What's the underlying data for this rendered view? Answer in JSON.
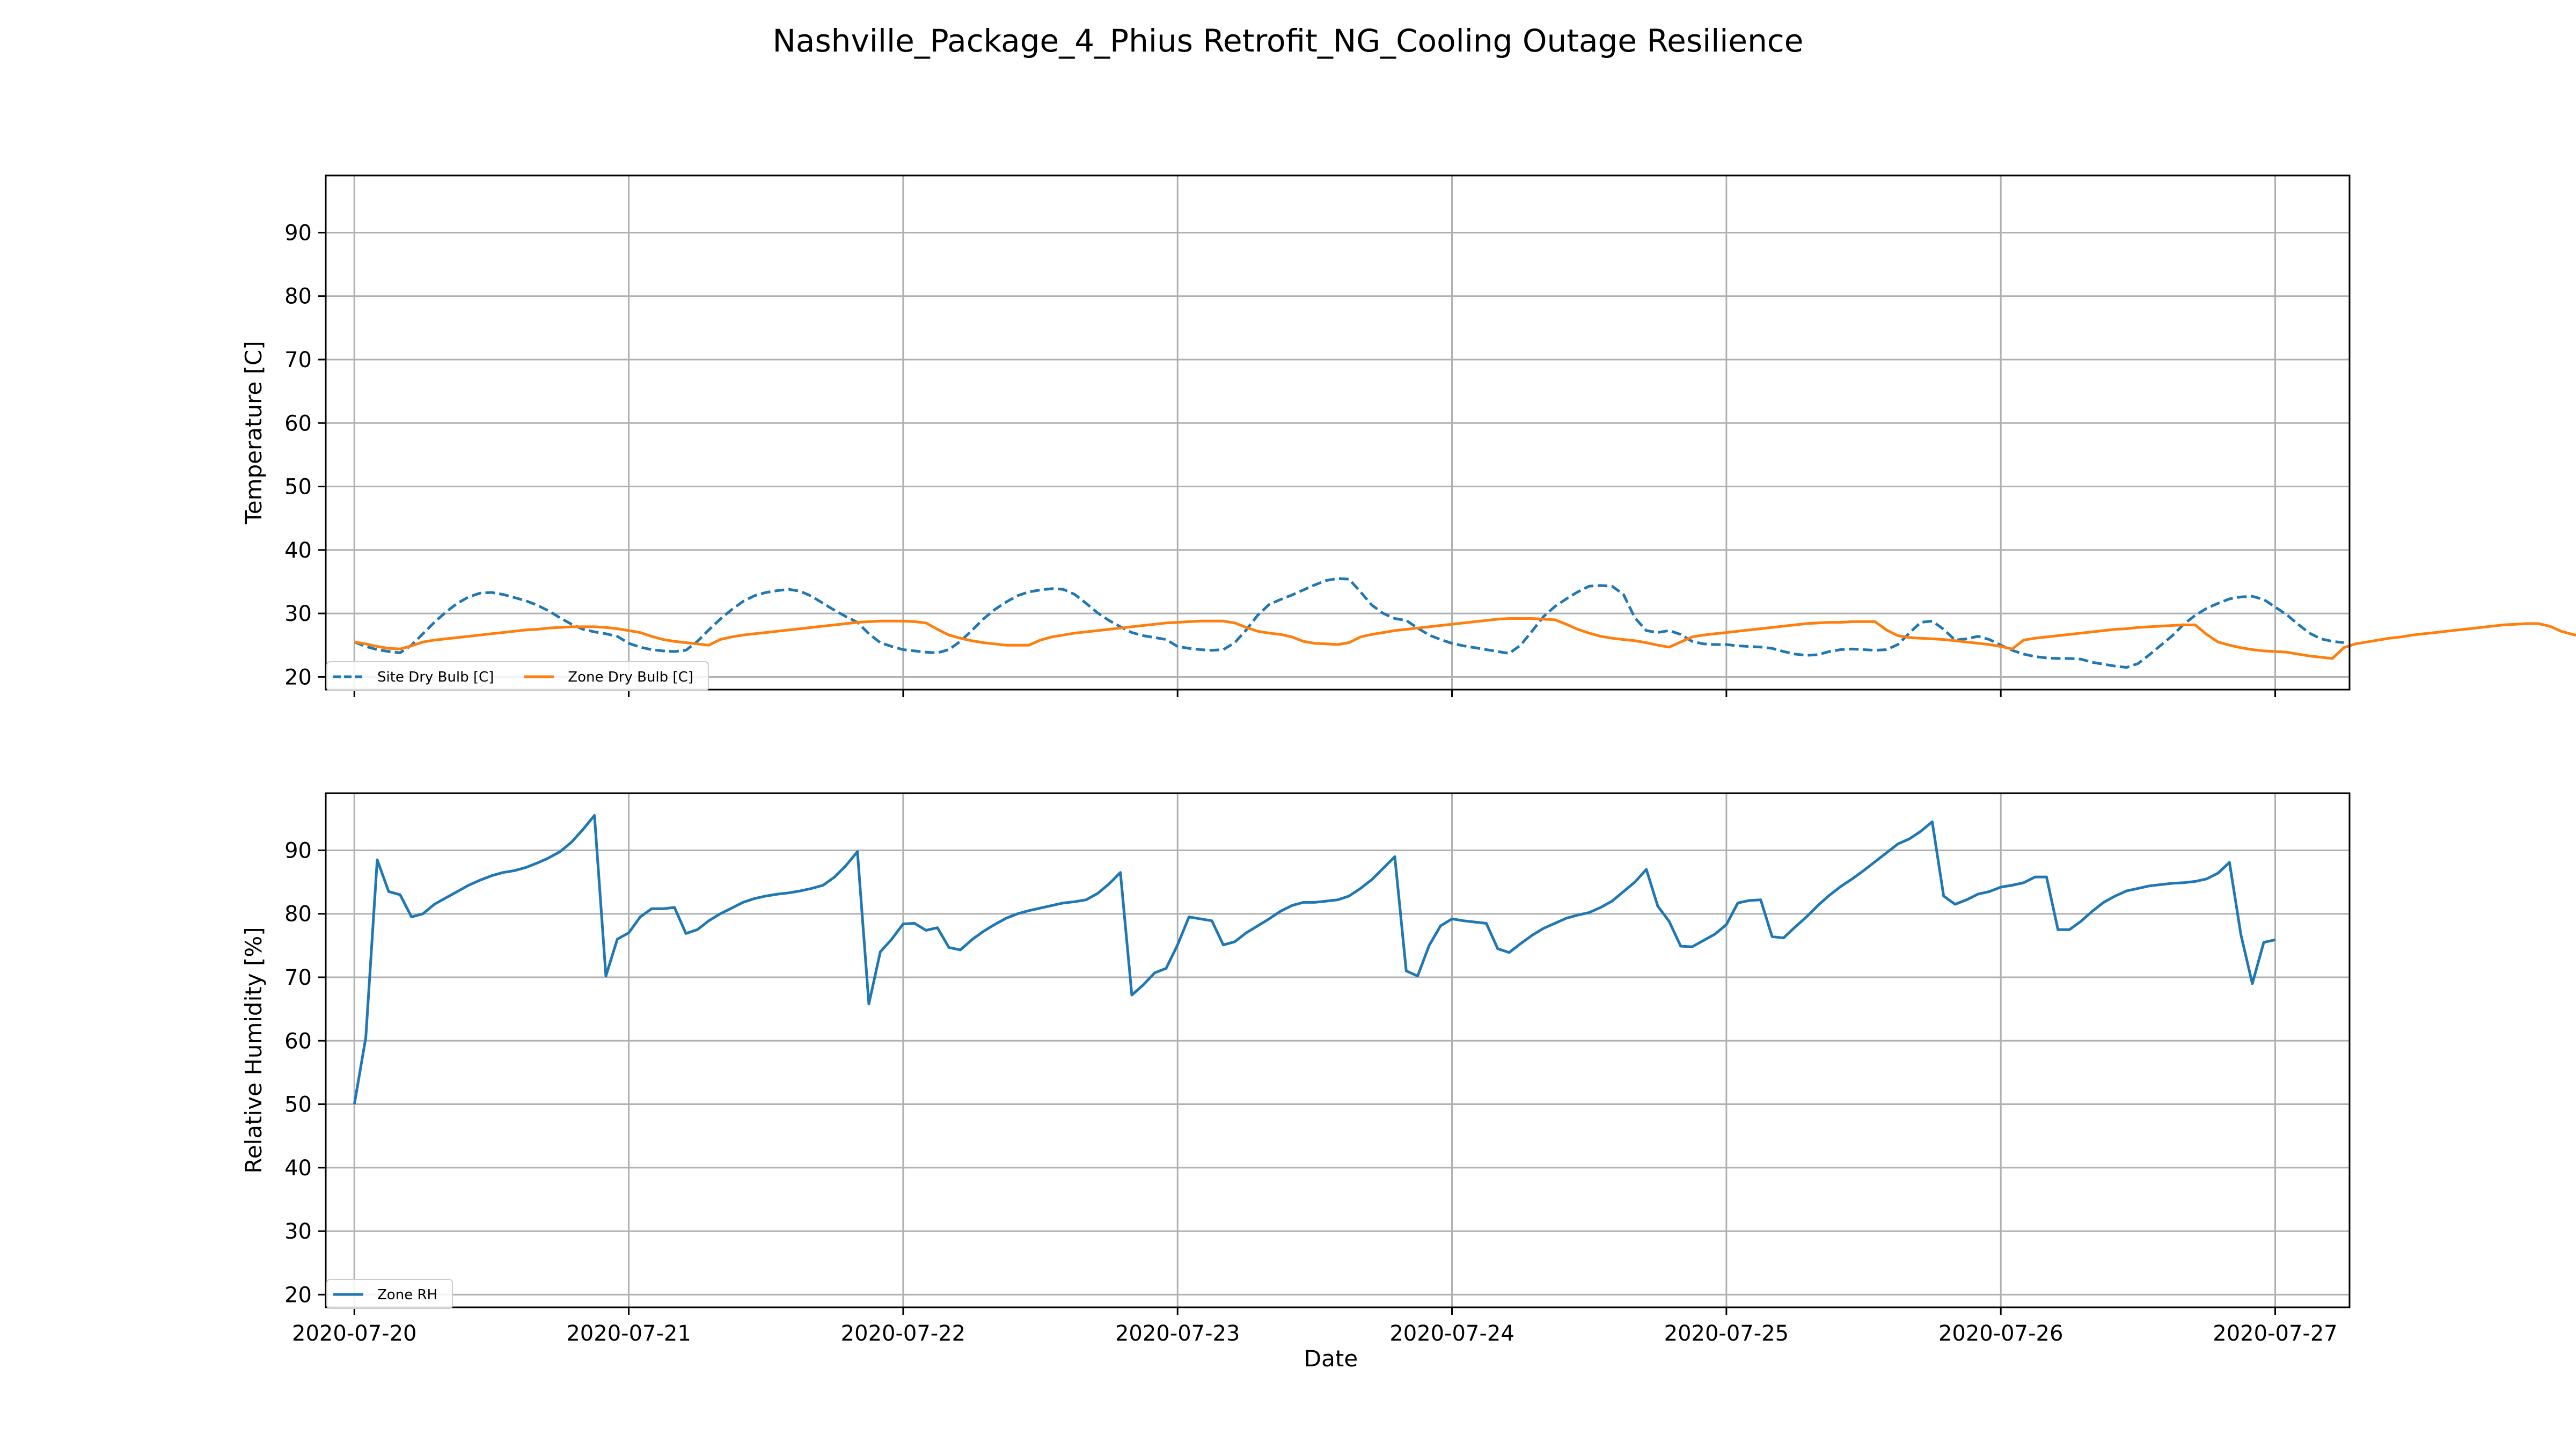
{
  "chart_data": {
    "type": "line",
    "title": "Nashville_Package_4_Phius Retrofit_NG_Cooling Outage Resilience",
    "xlabel": "Date",
    "x_range": [
      "2020-07-19T21:30",
      "2020-07-27T06:30"
    ],
    "x_ticks": [
      "2020-07-20",
      "2020-07-21",
      "2020-07-22",
      "2020-07-23",
      "2020-07-24",
      "2020-07-25",
      "2020-07-26",
      "2020-07-27"
    ],
    "grid": true,
    "sample_interval_hours": 1,
    "panels": [
      {
        "ylabel": "Temperature [C]",
        "ylim": [
          18,
          99
        ],
        "yticks": [
          20,
          30,
          40,
          50,
          60,
          70,
          80,
          90
        ],
        "legend": "lower-left",
        "legend_columns": 2,
        "series": [
          {
            "name": "Site Dry Bulb [C]",
            "color": "#1f77b4",
            "style": "dashed",
            "start": "2020-07-20T00:00",
            "values": [
              25.5,
              24.8,
              24.3,
              24.0,
              23.8,
              25.0,
              26.8,
              28.6,
              30.2,
              31.6,
              32.6,
              33.2,
              33.3,
              33.0,
              32.5,
              32.0,
              31.3,
              30.4,
              29.3,
              28.3,
              27.5,
              27.1,
              26.8,
              26.4,
              25.3,
              24.7,
              24.3,
              24.1,
              24.0,
              24.2,
              25.6,
              27.4,
              29.1,
              30.6,
              31.9,
              32.8,
              33.3,
              33.6,
              33.8,
              33.5,
              32.7,
              31.6,
              30.5,
              29.5,
              28.6,
              26.8,
              25.4,
              24.8,
              24.3,
              24.1,
              23.9,
              23.8,
              24.3,
              25.6,
              27.3,
              29.1,
              30.6,
              31.8,
              32.8,
              33.4,
              33.7,
              33.9,
              33.8,
              33.0,
              31.6,
              30.1,
              28.9,
              27.9,
              27.0,
              26.5,
              26.2,
              25.9,
              24.8,
              24.5,
              24.3,
              24.2,
              24.3,
              25.4,
              27.4,
              29.7,
              31.4,
              32.2,
              32.9,
              33.7,
              34.5,
              35.2,
              35.5,
              35.4,
              33.4,
              31.3,
              30.0,
              29.2,
              28.9,
              27.7,
              26.6,
              25.9,
              25.3,
              24.9,
              24.6,
              24.3,
              24.0,
              23.7,
              25.0,
              27.2,
              29.5,
              31.1,
              32.3,
              33.4,
              34.3,
              34.4,
              34.3,
              33.0,
              29.3,
              27.3,
              27.0,
              27.3,
              26.7,
              25.6,
              25.2,
              25.1,
              25.1,
              24.9,
              24.8,
              24.7,
              24.5,
              24.0,
              23.6,
              23.4,
              23.5,
              24.0,
              24.3,
              24.4,
              24.3,
              24.2,
              24.3,
              25.1,
              26.9,
              28.6,
              28.8,
              27.5,
              25.8,
              26.0,
              26.4,
              25.9,
              25.0,
              24.2,
              23.6,
              23.2,
              23.0,
              22.9,
              22.9,
              22.8,
              22.3,
              22.0,
              21.7,
              21.5,
              22.1,
              23.5,
              25.0,
              26.5,
              28.3,
              29.7,
              30.8,
              31.6,
              32.3,
              32.6,
              32.7,
              32.2,
              31.0,
              29.8,
              28.3,
              26.9,
              26.0,
              25.6,
              25.4
            ]
          },
          {
            "name": "Zone Dry Bulb [C]",
            "color": "#ff7f0e",
            "style": "solid",
            "start": "2020-07-20T00:00",
            "values": [
              25.5,
              25.2,
              24.8,
              24.5,
              24.4,
              24.9,
              25.5,
              25.8,
              26.0,
              26.2,
              26.4,
              26.6,
              26.8,
              27.0,
              27.2,
              27.4,
              27.5,
              27.7,
              27.8,
              27.9,
              27.9,
              27.9,
              27.8,
              27.6,
              27.3,
              27.0,
              26.4,
              25.9,
              25.6,
              25.4,
              25.2,
              25.0,
              25.9,
              26.3,
              26.6,
              26.8,
              27.0,
              27.2,
              27.4,
              27.6,
              27.8,
              28.0,
              28.2,
              28.4,
              28.6,
              28.7,
              28.8,
              28.8,
              28.8,
              28.7,
              28.5,
              27.5,
              26.6,
              26.1,
              25.7,
              25.4,
              25.2,
              25.0,
              25.0,
              25.0,
              25.8,
              26.3,
              26.6,
              26.9,
              27.1,
              27.3,
              27.5,
              27.7,
              27.9,
              28.1,
              28.3,
              28.5,
              28.6,
              28.7,
              28.8,
              28.8,
              28.8,
              28.5,
              27.8,
              27.2,
              26.9,
              26.7,
              26.3,
              25.6,
              25.3,
              25.2,
              25.1,
              25.4,
              26.3,
              26.7,
              27.0,
              27.3,
              27.5,
              27.7,
              27.9,
              28.1,
              28.3,
              28.5,
              28.7,
              28.9,
              29.1,
              29.2,
              29.2,
              29.2,
              29.1,
              29.0,
              28.3,
              27.5,
              26.9,
              26.4,
              26.1,
              25.9,
              25.7,
              25.4,
              25.0,
              24.7,
              25.5,
              26.3,
              26.6,
              26.8,
              27.0,
              27.2,
              27.4,
              27.6,
              27.8,
              28.0,
              28.2,
              28.4,
              28.5,
              28.6,
              28.6,
              28.7,
              28.7,
              28.7,
              27.4,
              26.5,
              26.2,
              26.1,
              26.0,
              25.9,
              25.7,
              25.5,
              25.3,
              25.1,
              24.8,
              24.4,
              25.8,
              26.1,
              26.3,
              26.5,
              26.7,
              26.9,
              27.1,
              27.3,
              27.5,
              27.6,
              27.8,
              27.9,
              28.0,
              28.1,
              28.2,
              28.2,
              26.7,
              25.5,
              25.0,
              24.6,
              24.3,
              24.1,
              24.0,
              23.9,
              23.6,
              23.3,
              23.1,
              22.9,
              24.6,
              25.2,
              25.5,
              25.8,
              26.1,
              26.3,
              26.6,
              26.8,
              27.0,
              27.2,
              27.4,
              27.6,
              27.8,
              28.0,
              28.2,
              28.3,
              28.4,
              28.4,
              28.0,
              27.2,
              26.7,
              26.3,
              25.9
            ]
          }
        ]
      },
      {
        "ylabel": "Relative Humidity [%]",
        "ylim": [
          18,
          99
        ],
        "yticks": [
          20,
          30,
          40,
          50,
          60,
          70,
          80,
          90
        ],
        "legend": "lower-left",
        "series": [
          {
            "name": "Zone RH",
            "color": "#1f77b4",
            "style": "solid",
            "start": "2020-07-20T00:00",
            "values": [
              50.0,
              60.5,
              88.5,
              83.5,
              83.0,
              79.5,
              80.0,
              81.5,
              82.5,
              83.5,
              84.5,
              85.3,
              86.0,
              86.5,
              86.8,
              87.3,
              88.0,
              88.8,
              89.8,
              91.3,
              93.3,
              95.5,
              70.2,
              76.0,
              77.0,
              79.5,
              80.8,
              80.8,
              81.0,
              76.9,
              77.5,
              78.9,
              80.0,
              80.9,
              81.8,
              82.4,
              82.8,
              83.1,
              83.3,
              83.6,
              84.0,
              84.5,
              85.8,
              87.6,
              89.8,
              65.8,
              74.0,
              76.0,
              78.4,
              78.5,
              77.4,
              77.8,
              74.7,
              74.3,
              75.9,
              77.2,
              78.3,
              79.3,
              80.0,
              80.5,
              80.9,
              81.3,
              81.7,
              81.9,
              82.2,
              83.2,
              84.7,
              86.5,
              67.2,
              68.8,
              70.7,
              71.4,
              75.1,
              79.5,
              79.2,
              78.9,
              75.1,
              75.6,
              77.0,
              78.1,
              79.2,
              80.4,
              81.3,
              81.8,
              81.8,
              82.0,
              82.2,
              82.8,
              84.0,
              85.4,
              87.2,
              89.0,
              71.0,
              70.2,
              75.0,
              78.1,
              79.2,
              78.9,
              78.7,
              78.5,
              74.5,
              73.9,
              75.3,
              76.6,
              77.7,
              78.5,
              79.3,
              79.8,
              80.2,
              81.0,
              82.0,
              83.5,
              85.0,
              87.0,
              81.2,
              78.8,
              74.9,
              74.8,
              75.8,
              76.8,
              78.3,
              81.7,
              82.1,
              82.2,
              76.4,
              76.2,
              77.9,
              79.5,
              81.3,
              82.9,
              84.3,
              85.5,
              86.8,
              88.2,
              89.6,
              91.0,
              91.8,
              93.0,
              94.5,
              82.8,
              81.5,
              82.2,
              83.1,
              83.5,
              84.2,
              84.5,
              84.9,
              85.8,
              85.8,
              77.5,
              77.5,
              78.8,
              80.4,
              81.8,
              82.8,
              83.6,
              84.0,
              84.4,
              84.6,
              84.8,
              84.9,
              85.1,
              85.5,
              86.4,
              88.1,
              76.7,
              69.0,
              75.5,
              75.9
            ]
          }
        ]
      }
    ]
  }
}
